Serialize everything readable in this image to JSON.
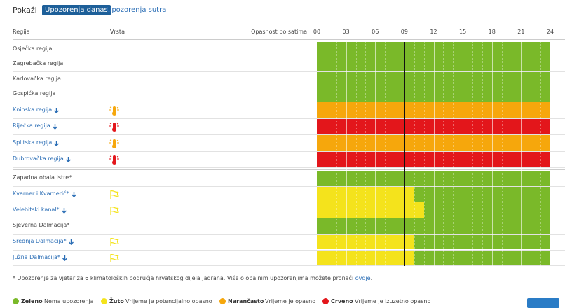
{
  "header": {
    "show_label": "Pokaži",
    "tabs": [
      "Upozorenja danas",
      "Upozorenja sutra"
    ]
  },
  "table": {
    "columns": [
      "Regija",
      "Vrsta",
      "Opasnost po satima"
    ],
    "hours": [
      {
        "value": 0,
        "label": "00"
      },
      {
        "value": 3,
        "label": "03"
      },
      {
        "value": 6,
        "label": "06"
      },
      {
        "value": 9,
        "label": "09"
      },
      {
        "value": 12,
        "label": "12"
      },
      {
        "value": 15,
        "label": "15"
      },
      {
        "value": 18,
        "label": "18"
      },
      {
        "value": 21,
        "label": "21"
      },
      {
        "value": 24,
        "label": "24"
      }
    ],
    "now_hour": 9,
    "groups": [
      [
        {
          "name": "Osječka regija",
          "segments": [
            {
              "start": 0,
              "end": 24,
              "color": "#7ab929"
            }
          ]
        },
        {
          "name": "Zagrebačka regija",
          "segments": [
            {
              "start": 0,
              "end": 24,
              "color": "#7ab929"
            }
          ]
        },
        {
          "name": "Karlovačka regija",
          "segments": [
            {
              "start": 0,
              "end": 24,
              "color": "#7ab929"
            }
          ]
        },
        {
          "name": "Gospićka regija",
          "segments": [
            {
              "start": 0,
              "end": 24,
              "color": "#7ab929"
            }
          ]
        },
        {
          "name": "Kninska regija",
          "segments": [
            {
              "start": 0,
              "end": 24,
              "color": "#f6a70c"
            }
          ]
        },
        {
          "name": "Riječka regija",
          "segments": [
            {
              "start": 0,
              "end": 24,
              "color": "#e3161b"
            }
          ]
        },
        {
          "name": "Splitska regija",
          "segments": [
            {
              "start": 0,
              "end": 24,
              "color": "#f6a70c"
            }
          ]
        },
        {
          "name": "Dubrovačka regija",
          "segments": [
            {
              "start": 0,
              "end": 24,
              "color": "#e3161b"
            }
          ]
        }
      ],
      [
        {
          "name": "Zapadna obala Istre*",
          "segments": [
            {
              "start": 0,
              "end": 24,
              "color": "#7ab929"
            }
          ]
        },
        {
          "name": "Kvarner i Kvarnerić*",
          "segments": [
            {
              "start": 0,
              "end": 10,
              "color": "#f4e31c"
            },
            {
              "start": 10,
              "end": 24,
              "color": "#7ab929"
            }
          ]
        },
        {
          "name": "Velebitski kanal*",
          "segments": [
            {
              "start": 0,
              "end": 11,
              "color": "#f4e31c"
            },
            {
              "start": 11,
              "end": 24,
              "color": "#7ab929"
            }
          ]
        },
        {
          "name": "Sjeverna Dalmacija*",
          "segments": [
            {
              "start": 0,
              "end": 24,
              "color": "#7ab929"
            }
          ]
        },
        {
          "name": "Srednja Dalmacija*",
          "segments": [
            {
              "start": 0,
              "end": 10,
              "color": "#f4e31c"
            },
            {
              "start": 10,
              "end": 24,
              "color": "#7ab929"
            }
          ]
        },
        {
          "name": "Južna Dalmacija*",
          "segments": [
            {
              "start": 0,
              "end": 10,
              "color": "#f4e31c"
            },
            {
              "start": 10,
              "end": 24,
              "color": "#7ab929"
            }
          ]
        }
      ]
    ]
  },
  "footnote": {
    "text": "* Upozorenje za vjetar za 6 klimatoloških područja hrvatskog dijela Jadrana. Više o obalnim upozorenjima možete pronaći ",
    "link": "ovdje",
    "end": "."
  },
  "legend": [
    {
      "name": "Zeleno",
      "description": "Nema upozorenja",
      "color": "#7ab929"
    },
    {
      "name": "Žuto",
      "description": "Vrijeme je potencijalno opasno",
      "color": "#f4e31c"
    },
    {
      "name": "Narančasto",
      "description": "Vrijeme je opasno",
      "color": "#f6a70c"
    },
    {
      "name": "Crveno",
      "description": "Vrijeme je izuzetno opasno",
      "color": "#e3161b"
    }
  ]
}
